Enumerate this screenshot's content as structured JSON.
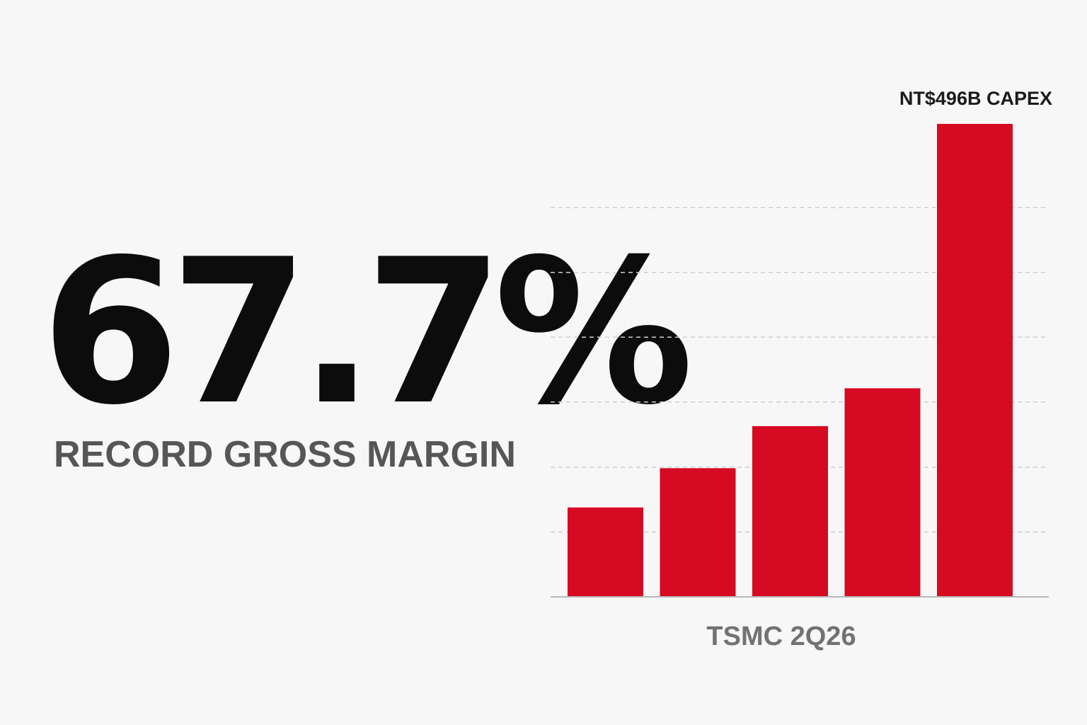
{
  "headline": {
    "value": "67.7%",
    "caption": "RECORD GROSS MARGIN"
  },
  "colors": {
    "bar": "#d60a22",
    "gridline": "#cfcfcf",
    "baseline": "#b8b8b8",
    "headline": "#0c0c0c",
    "caption": "#565656"
  },
  "chart_data": {
    "type": "bar",
    "categories": [
      "",
      "",
      "",
      "",
      ""
    ],
    "values": [
      18.9,
      27.2,
      36.1,
      44.1,
      100
    ],
    "annotation": "NT$496B CAPEX",
    "xlabel": "TSMC 2Q26",
    "ylabel": "",
    "ylim": [
      0,
      100
    ],
    "grid": true,
    "gridlines": [
      13.7,
      27.4,
      41.2,
      54.9,
      68.6,
      82.3
    ]
  }
}
